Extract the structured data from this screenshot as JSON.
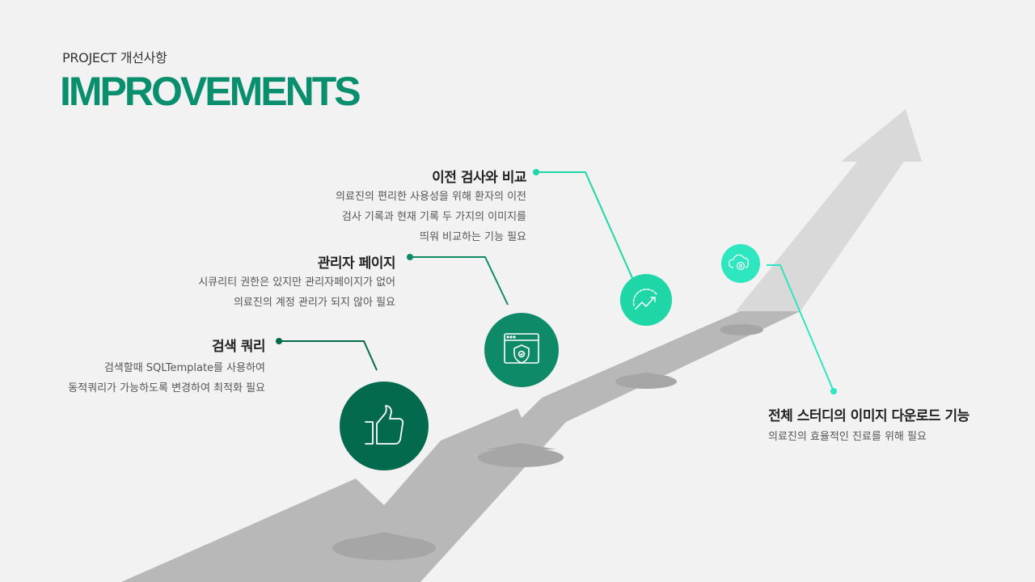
{
  "header": {
    "subtitle": "PROJECT 개선사항",
    "title": "IMPROVEMENTS"
  },
  "items": [
    {
      "title": "검색 쿼리",
      "desc": [
        "검색할때 SQLTemplate를 사용하여",
        "동적쿼리가 가능하도록 변경하여 최적화 필요"
      ],
      "icon": "thumbs-up-icon"
    },
    {
      "title": "관리자 페이지",
      "desc": [
        "시큐리티 권한은 있지만 관리자페이지가 없어",
        "의료진의 계정 관리가 되지 않아 필요"
      ],
      "icon": "browser-shield-icon"
    },
    {
      "title": "이전 검사와 비교",
      "desc": [
        "의료진의 편리한 사용성을 위해 환자의 이전",
        "검사 기록과 현재 기록 두 가지의 이미지를",
        "띄워 비교하는 기능 필요"
      ],
      "icon": "growth-chart-icon"
    },
    {
      "title": "전체 스터디의 이미지 다운로드 기능",
      "desc": [
        "의료진의 효율적인 진료를 위해 필요"
      ],
      "icon": "cloud-gear-icon"
    }
  ],
  "colors": {
    "brand": "#0a8f6e",
    "dark_green": "#046a4e",
    "mid_green": "#0f8a68",
    "teal": "#1ed6a6",
    "mint": "#2ee6c0",
    "road": "#b8b8b8",
    "arrow": "#d9d9d9"
  }
}
